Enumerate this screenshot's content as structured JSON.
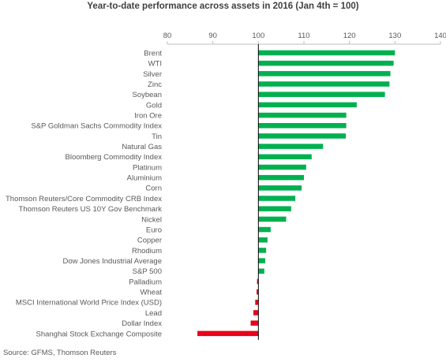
{
  "source": "Source: GFMS, Thomson Reuters",
  "colors": {
    "positive": "#00b050",
    "negative": "#e8001c",
    "axis": "#000000",
    "tick": "#bfbfbf"
  },
  "chart_data": {
    "type": "bar",
    "orientation": "horizontal",
    "title": "Year-to-date performance across assets in 2016 (Jan 4th = 100)",
    "xlim": [
      80,
      140
    ],
    "xticks": [
      80,
      90,
      100,
      110,
      120,
      130,
      140
    ],
    "baseline": 100,
    "grid": false,
    "legend": "none",
    "categories": [
      "Brent",
      "WTI",
      "Silver",
      "Zinc",
      "Soybean",
      "Gold",
      "Iron Ore",
      "S&P Goldman Sachs Commodity Index",
      "Tin",
      "Natural Gas",
      "Bloomberg Commodity Index",
      "Platinum",
      "Aluminium",
      "Corn",
      "Thomson Reuters/Core Commodity CRB Index",
      "Thomson Reuters US 10Y Gov Benchmark",
      "Nickel",
      "Euro",
      "Copper",
      "Rhodium",
      "Dow Jones Industrial Average",
      "S&P 500",
      "Palladium",
      "Wheat",
      "MSCI International World Price Index (USD)",
      "Lead",
      "Dollar Index",
      "Shanghai Stock Exchange Composite"
    ],
    "values": [
      130.0,
      129.7,
      129.0,
      128.8,
      127.8,
      121.6,
      119.3,
      119.3,
      119.2,
      114.2,
      111.7,
      110.5,
      110.0,
      109.5,
      108.1,
      107.2,
      106.1,
      102.7,
      102.0,
      101.7,
      101.5,
      101.3,
      99.7,
      99.6,
      99.3,
      98.9,
      98.3,
      86.6
    ]
  }
}
